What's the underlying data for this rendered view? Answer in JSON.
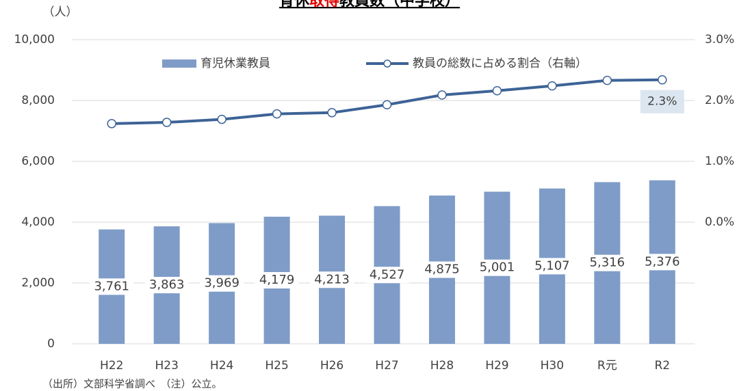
{
  "chart_data": {
    "type": "bar",
    "title": [
      "育休",
      "取得",
      "教員数（中学校）"
    ],
    "y_axis_label": "（人）",
    "source_note": "（出所）文部科学省調べ　（注）公立。",
    "categories": [
      "H22",
      "H23",
      "H24",
      "H25",
      "H26",
      "H27",
      "H28",
      "H29",
      "H30",
      "R元",
      "R2"
    ],
    "series": [
      {
        "name": "育児休業教員",
        "color": "#7f9cc8",
        "values": [
          3761,
          3863,
          3969,
          4179,
          4213,
          4527,
          4875,
          5001,
          5107,
          5316,
          5376
        ],
        "value_labels": [
          "3,761",
          "3,863",
          "3,969",
          "4,179",
          "4,213",
          "4,527",
          "4,875",
          "5,001",
          "5,107",
          "5,316",
          "5,376"
        ]
      },
      {
        "name": "教員の総数に占める割合（右軸）",
        "type": "line",
        "axis": "y2",
        "color": "#3d6396",
        "values": [
          1.62,
          1.64,
          1.69,
          1.78,
          1.8,
          1.93,
          2.09,
          2.16,
          2.24,
          2.33,
          2.34
        ],
        "value_labels": [
          null,
          null,
          null,
          null,
          null,
          null,
          null,
          null,
          null,
          null,
          "2.3%"
        ]
      }
    ],
    "ylim": [
      0,
      10000
    ],
    "yticks": [
      0,
      {
        "value": 2000,
        "label": "2,000"
      },
      {
        "value": 4000,
        "label": "4,000"
      },
      {
        "value": 6000,
        "label": "6,000"
      },
      {
        "value": 8000,
        "label": "8,000"
      },
      {
        "value": 10000,
        "label": "10,000"
      }
    ],
    "y2lim": [
      -2,
      3
    ],
    "y2ticks": [
      {
        "value": 0,
        "label": "0.0%"
      },
      {
        "value": 1,
        "label": "1.0%"
      },
      {
        "value": 2,
        "label": "2.0%"
      },
      {
        "value": 3,
        "label": "3.0%"
      }
    ],
    "grid": true
  }
}
